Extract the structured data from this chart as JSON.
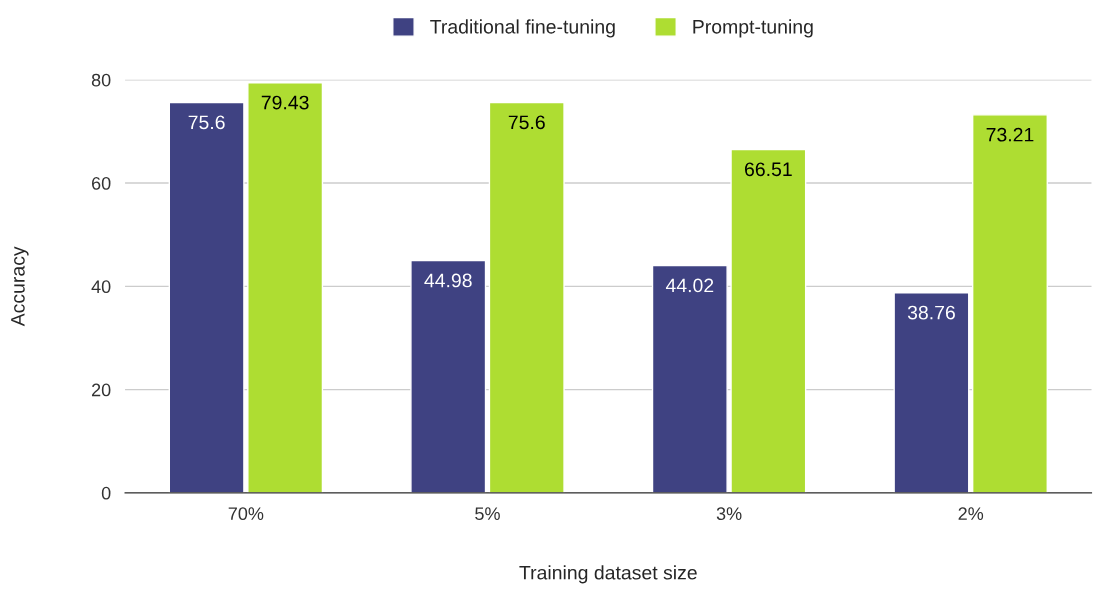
{
  "chart_data": {
    "type": "bar",
    "xlabel": "Training dataset size",
    "ylabel": "Accuracy",
    "categories": [
      "70%",
      "5%",
      "3%",
      "2%"
    ],
    "series": [
      {
        "name": "Traditional fine-tuning",
        "color": "#3f4282",
        "values": [
          75.6,
          44.98,
          44.02,
          38.76
        ]
      },
      {
        "name": "Prompt-tuning",
        "color": "#aedd32",
        "values": [
          79.43,
          75.6,
          66.51,
          73.21
        ]
      }
    ],
    "ylim": [
      0,
      80
    ],
    "yticks": [
      0,
      20,
      40,
      60,
      80
    ],
    "grid": "y",
    "legend": "top",
    "data_labels": true
  }
}
